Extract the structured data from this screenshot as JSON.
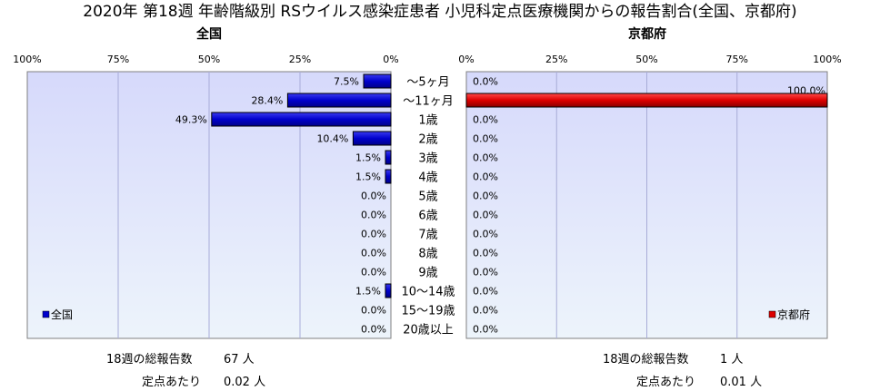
{
  "title": "2020年 第18週 年齢階級別 RSウイルス感染症患者 小児科定点医療機関からの報告割合(全国、京都府)",
  "colors": {
    "national": "#0000cc",
    "kyoto": "#dd0000",
    "plot_bg": "#d6d9fb",
    "plot_bg_bottom": "#edf4fb"
  },
  "chart_data": {
    "type": "bar",
    "orientation": "horizontal",
    "categories": [
      "～5ヶ月",
      "～11ヶ月",
      "1歳",
      "2歳",
      "3歳",
      "4歳",
      "5歳",
      "6歳",
      "7歳",
      "8歳",
      "9歳",
      "10～14歳",
      "15～19歳",
      "20歳以上"
    ],
    "xlim": [
      0,
      100
    ],
    "ticks": [
      "0%",
      "25%",
      "50%",
      "75%",
      "100%"
    ],
    "grid": true,
    "series": [
      {
        "name": "全国",
        "title": "全国",
        "direction": "left",
        "legend_position": "bottom-left",
        "values": [
          7.5,
          28.4,
          49.3,
          10.4,
          1.5,
          1.5,
          0.0,
          0.0,
          0.0,
          0.0,
          0.0,
          1.5,
          0.0,
          0.0
        ]
      },
      {
        "name": "京都府",
        "title": "京都府",
        "direction": "right",
        "legend_position": "bottom-right",
        "values": [
          0.0,
          100.0,
          0.0,
          0.0,
          0.0,
          0.0,
          0.0,
          0.0,
          0.0,
          0.0,
          0.0,
          0.0,
          0.0,
          0.0
        ]
      }
    ]
  },
  "footer": {
    "national": {
      "total_label": "18週の総報告数",
      "total_value": "67 人",
      "per_label": "定点あたり",
      "per_value": "0.02 人"
    },
    "kyoto": {
      "total_label": "18週の総報告数",
      "total_value": "1 人",
      "per_label": "定点あたり",
      "per_value": "0.01 人"
    }
  }
}
